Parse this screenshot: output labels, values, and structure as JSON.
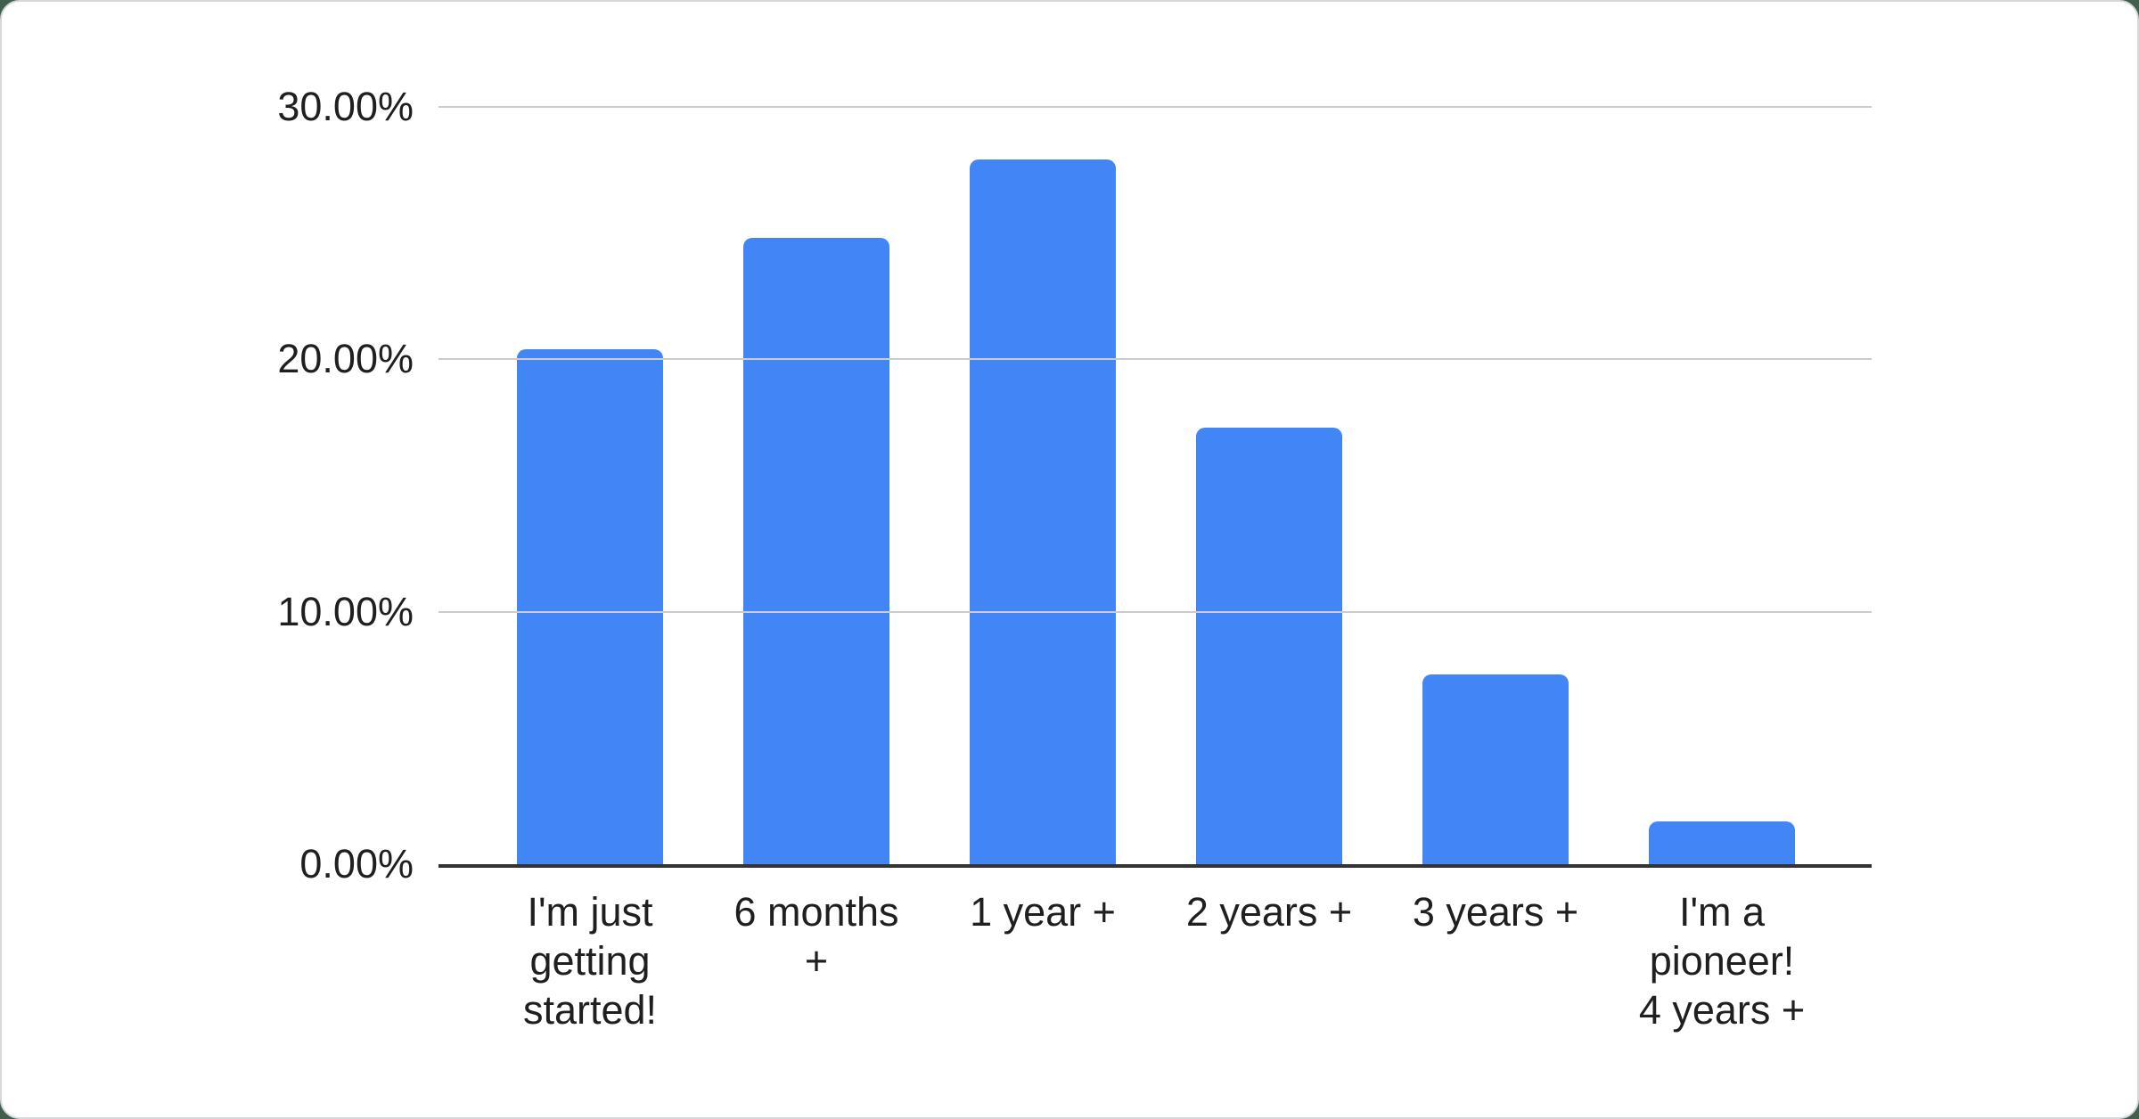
{
  "page": {
    "background_color": "#415f4a",
    "card": {
      "background_color": "#ffffff",
      "border_color": "#d5d9dd"
    }
  },
  "chart_data": {
    "type": "bar",
    "title": "",
    "xlabel": "",
    "ylabel": "",
    "categories": [
      "I'm just getting started!",
      "6 months +",
      "1 year +",
      "2 years +",
      "3 years +",
      "I'm a pioneer! 4 years +"
    ],
    "category_labels_wrapped": [
      "I'm just\ngetting\nstarted!",
      "6 months\n+",
      "1 year +",
      "2 years +",
      "3 years +",
      "I'm a\npioneer!\n4 years +"
    ],
    "values": [
      20.4,
      24.8,
      27.9,
      17.3,
      7.5,
      1.7
    ],
    "unit": "%",
    "ylim": [
      0,
      30
    ],
    "yticks": [
      {
        "value": 0,
        "label": "0.00%"
      },
      {
        "value": 10,
        "label": "10.00%"
      },
      {
        "value": 20,
        "label": "20.00%"
      },
      {
        "value": 30,
        "label": "30.00%"
      }
    ],
    "grid": "horizontal",
    "legend": "none",
    "colors": {
      "bar": "#4285f4",
      "gridline": "#cccccc",
      "axis_line": "#333333",
      "label_text": "#1f1f1f"
    }
  }
}
